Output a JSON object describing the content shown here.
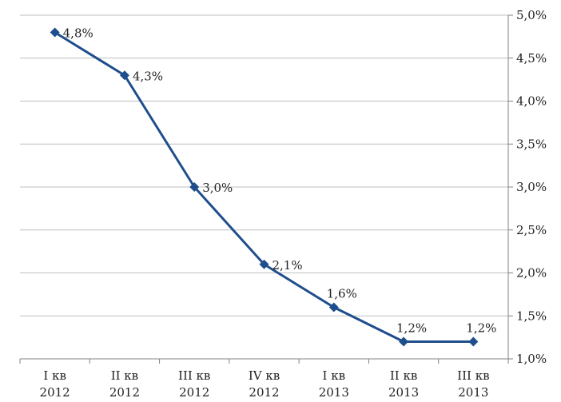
{
  "chart_data": {
    "type": "line",
    "categories": [
      [
        "I кв",
        "2012"
      ],
      [
        "II кв",
        "2012"
      ],
      [
        "III кв",
        "2012"
      ],
      [
        "IV кв",
        "2012"
      ],
      [
        "I кв",
        "2013"
      ],
      [
        "II кв",
        "2013"
      ],
      [
        "III кв",
        "2013"
      ]
    ],
    "series": [
      {
        "values": [
          4.8,
          4.3,
          3.0,
          2.1,
          1.6,
          1.2,
          1.2
        ],
        "data_labels": [
          "4,8%",
          "4,3%",
          "3,0%",
          "2,1%",
          "1,6%",
          "1,2%",
          "1,2%"
        ],
        "color": "#1f4e8c"
      }
    ],
    "ylim": [
      1.0,
      5.0
    ],
    "y_ticks": [
      1.0,
      1.5,
      2.0,
      2.5,
      3.0,
      3.5,
      4.0,
      4.5,
      5.0
    ],
    "y_tick_labels": [
      "1,0%",
      "1,5%",
      "2,0%",
      "2,5%",
      "3,0%",
      "3,5%",
      "4,0%",
      "4,5%",
      "5,0%"
    ],
    "y_axis_side": "right",
    "grid": true,
    "gridline_color": "#bfbfbf",
    "marker": "diamond",
    "title": "",
    "xlabel": "",
    "ylabel": ""
  }
}
